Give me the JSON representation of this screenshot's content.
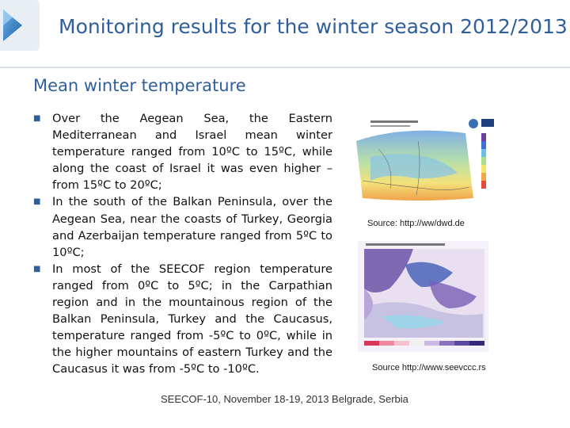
{
  "header": {
    "title": "Monitoring results for the winter season 2012/2013"
  },
  "section": {
    "subtitle": "Mean winter temperature"
  },
  "bullets": [
    "Over the Aegean Sea, the Eastern Mediterranean and Israel mean winter temperature ranged from 10ºC to 15ºC, while along the coast of Israel it was even higher – from 15ºC to 20ºC;",
    "In the south of the Balkan Peninsula, over the Aegean Sea, near the coasts of Turkey, Georgia and Azerbaijan temperature ranged from 5ºC to 10ºC;",
    "In most of the SEECOF region temperature ranged from 0ºC to 5ºC; in the Carpathian region and in the mountainous region of the Balkan Peninsula, Turkey and the Caucasus, temperature ranged from -5ºC to 0ºC, while in the higher mountains of eastern Turkey and the Caucasus it was from -5ºC to -10ºC."
  ],
  "bullet_symbol": "■",
  "figures": [
    {
      "caption": "Source: http://ww/dwd.de"
    },
    {
      "caption": "Source http://www.seevccc.rs"
    }
  ],
  "footer": {
    "text": "SEECOF-10, November 18-19, 2013 Belgrade, Serbia"
  },
  "colors": {
    "title": "#2f5f9a",
    "accent": "#1f6db5"
  }
}
